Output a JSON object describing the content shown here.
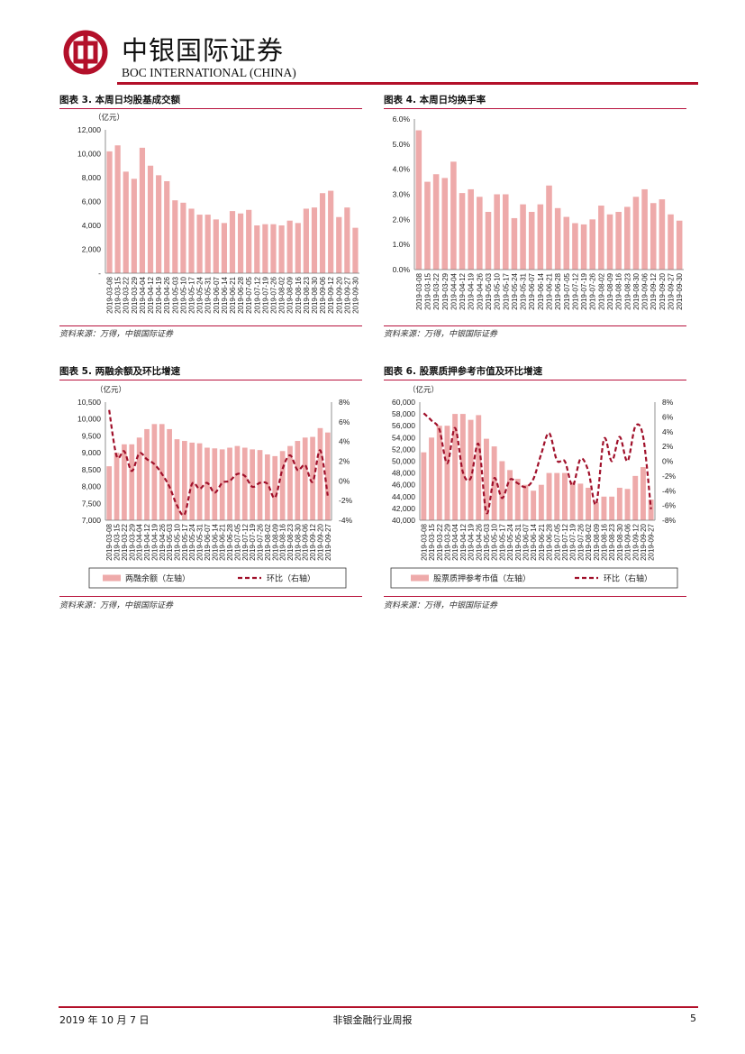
{
  "header": {
    "brand_cn": "中银国际证券",
    "brand_en": "BOC INTERNATIONAL (CHINA)",
    "accent_color": "#b3102a"
  },
  "figures": [
    {
      "title": "图表 3. 本周日均股基成交额",
      "source": "资料来源：万得，中银国际证券"
    },
    {
      "title": "图表 4. 本周日均换手率",
      "source": "资料来源：万得，中银国际证券"
    },
    {
      "title": "图表 5. 两融余额及环比增速",
      "source": "资料来源：万得，中银国际证券"
    },
    {
      "title": "图表 6. 股票质押参考市值及环比增速",
      "source": "资料来源：万得，中银国际证券"
    }
  ],
  "footer": {
    "date": "2019 年 10 月 7 日",
    "report_title": "非银金融行业周报",
    "page_number": "5"
  },
  "chart_data": [
    {
      "type": "bar",
      "title": "本周日均股基成交额",
      "unit_label": "（亿元）",
      "categories": [
        "2019-03-08",
        "2019-03-15",
        "2019-03-22",
        "2019-03-29",
        "2019-04-04",
        "2019-04-12",
        "2019-04-19",
        "2019-04-26",
        "2019-05-03",
        "2019-05-10",
        "2019-05-17",
        "2019-05-24",
        "2019-05-31",
        "2019-06-07",
        "2019-06-14",
        "2019-06-21",
        "2019-06-28",
        "2019-07-05",
        "2019-07-12",
        "2019-07-19",
        "2019-07-26",
        "2019-08-02",
        "2019-08-09",
        "2019-08-16",
        "2019-08-23",
        "2019-08-30",
        "2019-09-06",
        "2019-09-12",
        "2019-09-20",
        "2019-09-27",
        "2019-09-30"
      ],
      "values": [
        10200,
        10700,
        8500,
        7900,
        10500,
        9000,
        8200,
        7700,
        6100,
        5900,
        5400,
        4900,
        4900,
        4500,
        4200,
        5200,
        5000,
        5300,
        4000,
        4100,
        4100,
        4000,
        4400,
        4200,
        5400,
        5500,
        6700,
        6900,
        4700,
        5500,
        3800
      ],
      "ylim": [
        0,
        12000
      ],
      "yticks": [
        "-",
        "2,000",
        "4,000",
        "6,000",
        "8,000",
        "10,000",
        "12,000"
      ],
      "bar_color": "#eeaaaa"
    },
    {
      "type": "bar",
      "title": "本周日均换手率",
      "categories": [
        "2019-03-08",
        "2019-03-15",
        "2019-03-22",
        "2019-03-29",
        "2019-04-04",
        "2019-04-12",
        "2019-04-19",
        "2019-04-26",
        "2019-05-03",
        "2019-05-10",
        "2019-05-17",
        "2019-05-24",
        "2019-05-31",
        "2019-06-07",
        "2019-06-14",
        "2019-06-21",
        "2019-06-28",
        "2019-07-05",
        "2019-07-12",
        "2019-07-19",
        "2019-07-26",
        "2019-08-02",
        "2019-08-09",
        "2019-08-16",
        "2019-08-23",
        "2019-08-30",
        "2019-09-06",
        "2019-09-12",
        "2019-09-20",
        "2019-09-27",
        "2019-09-30"
      ],
      "values": [
        5.55,
        3.5,
        3.8,
        3.65,
        4.3,
        3.05,
        3.2,
        2.9,
        2.3,
        3.0,
        3.0,
        2.05,
        2.6,
        2.3,
        2.6,
        3.35,
        2.45,
        2.1,
        1.85,
        1.8,
        2.0,
        2.55,
        2.2,
        2.3,
        2.5,
        2.9,
        3.2,
        2.65,
        2.8,
        2.2,
        1.95
      ],
      "ylim": [
        0,
        6
      ],
      "yticks": [
        "0.0%",
        "1.0%",
        "2.0%",
        "3.0%",
        "4.0%",
        "5.0%",
        "6.0%"
      ],
      "bar_color": "#eeaaaa"
    },
    {
      "type": "bar+line",
      "title": "两融余额及环比增速",
      "unit_label": "（亿元）",
      "categories": [
        "2019-03-08",
        "2019-03-15",
        "2019-03-22",
        "2019-03-29",
        "2019-04-04",
        "2019-04-12",
        "2019-04-19",
        "2019-04-26",
        "2019-05-03",
        "2019-05-10",
        "2019-05-17",
        "2019-05-24",
        "2019-05-31",
        "2019-06-07",
        "2019-06-14",
        "2019-06-21",
        "2019-06-28",
        "2019-07-05",
        "2019-07-12",
        "2019-07-19",
        "2019-07-26",
        "2019-08-02",
        "2019-08-09",
        "2019-08-16",
        "2019-08-23",
        "2019-08-30",
        "2019-09-06",
        "2019-09-12",
        "2019-09-20",
        "2019-09-27"
      ],
      "series": [
        {
          "name": "两融余额（左轴）",
          "axis": "left",
          "kind": "bar",
          "color": "#eeaaaa",
          "values": [
            8600,
            9000,
            9250,
            9250,
            9450,
            9700,
            9850,
            9850,
            9700,
            9400,
            9350,
            9300,
            9280,
            9150,
            9130,
            9100,
            9150,
            9200,
            9150,
            9100,
            9080,
            8950,
            8900,
            9050,
            9200,
            9350,
            9450,
            9470,
            9730,
            9600
          ]
        },
        {
          "name": "环比（右轴）",
          "axis": "right",
          "kind": "line",
          "color": "#a0102a",
          "values": [
            7.2,
            2.5,
            3.0,
            1.0,
            2.8,
            2.2,
            1.7,
            0.7,
            -0.6,
            -2.5,
            -3.4,
            -0.3,
            -0.8,
            -0.2,
            -1.2,
            -0.2,
            0.0,
            0.7,
            0.5,
            -0.6,
            -0.2,
            -0.3,
            -1.7,
            1.2,
            2.6,
            1.1,
            1.6,
            -0.1,
            3.1,
            -1.5
          ]
        }
      ],
      "ylim_left": [
        7000,
        10500
      ],
      "ylim_right": [
        -4,
        8
      ],
      "yticks_left": [
        "7,000",
        "7,500",
        "8,000",
        "8,500",
        "9,000",
        "9,500",
        "10,000",
        "10,500"
      ],
      "yticks_right": [
        "-4%",
        "-2%",
        "0%",
        "2%",
        "4%",
        "6%",
        "8%"
      ],
      "legend": [
        "两融余额（左轴）",
        "环比（右轴）"
      ],
      "legend_position": "bottom"
    },
    {
      "type": "bar+line",
      "title": "股票质押参考市值及环比增速",
      "unit_label": "（亿元）",
      "categories": [
        "2019-03-08",
        "2019-03-15",
        "2019-03-22",
        "2019-03-29",
        "2019-04-04",
        "2019-04-12",
        "2019-04-19",
        "2019-04-26",
        "2019-05-03",
        "2019-05-10",
        "2019-05-17",
        "2019-05-24",
        "2019-05-31",
        "2019-06-07",
        "2019-06-14",
        "2019-06-21",
        "2019-06-28",
        "2019-07-05",
        "2019-07-12",
        "2019-07-19",
        "2019-07-26",
        "2019-08-02",
        "2019-08-09",
        "2019-08-16",
        "2019-08-23",
        "2019-08-30",
        "2019-09-06",
        "2019-09-12",
        "2019-09-20",
        "2019-09-27"
      ],
      "series": [
        {
          "name": "股票质押参考市值（左轴）",
          "axis": "left",
          "kind": "bar",
          "color": "#eeaaaa",
          "values": [
            51500,
            54000,
            56000,
            56000,
            58000,
            58000,
            57000,
            57800,
            53800,
            52500,
            50000,
            48500,
            47000,
            46000,
            45000,
            46000,
            48000,
            48000,
            48000,
            46500,
            46200,
            45500,
            43000,
            44000,
            44000,
            45500,
            45300,
            47500,
            49000,
            43500
          ]
        },
        {
          "name": "环比（右轴）",
          "axis": "right",
          "kind": "line",
          "color": "#a0102a",
          "values": [
            6.5,
            5.5,
            4.3,
            -0.3,
            4.5,
            -1.5,
            -2.3,
            2.3,
            -7.0,
            -2.3,
            -5.0,
            -2.5,
            -3.0,
            -3.5,
            -2.4,
            1.0,
            3.8,
            0.1,
            0.0,
            -3.3,
            0.3,
            -1.3,
            -5.8,
            3.0,
            0.0,
            3.3,
            0.0,
            4.7,
            3.3,
            -6.5
          ]
        }
      ],
      "ylim_left": [
        40000,
        60000
      ],
      "ylim_right": [
        -8,
        8
      ],
      "yticks_left": [
        "40,000",
        "42,000",
        "44,000",
        "46,000",
        "48,000",
        "50,000",
        "52,000",
        "54,000",
        "56,000",
        "58,000",
        "60,000"
      ],
      "yticks_right": [
        "-8%",
        "-6%",
        "-4%",
        "-2%",
        "0%",
        "2%",
        "4%",
        "6%",
        "8%"
      ],
      "legend": [
        "股票质押参考市值（左轴）",
        "环比（右轴）"
      ],
      "legend_position": "bottom"
    }
  ]
}
